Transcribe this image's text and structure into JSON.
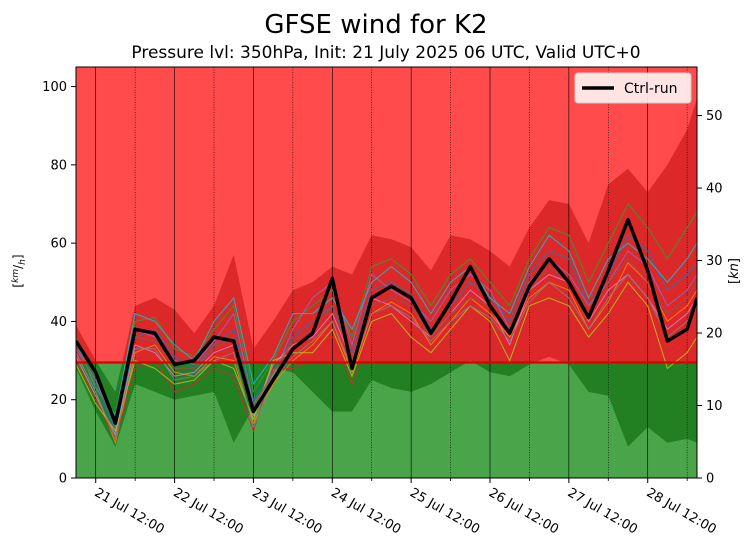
{
  "chart_data": {
    "type": "line",
    "title": "GFSE wind for K2",
    "subtitle": "Pressure lvl: 350hPa, Init: 21 July 2025 06 UTC, Valid UTC+0",
    "ylabel_left": "[km/h]",
    "ylabel_right": "[kn]",
    "ylim_left": [
      0,
      105
    ],
    "ylim_right": [
      0,
      56.7
    ],
    "yticks_left": [
      0,
      20,
      40,
      60,
      80,
      100
    ],
    "yticks_right": [
      0,
      10,
      20,
      30,
      40,
      50
    ],
    "xlim": [
      "2025-07-21 06:00",
      "2025-07-29 03:00"
    ],
    "xtick_labels": [
      "21 Jul 12:00",
      "22 Jul 12:00",
      "23 Jul 12:00",
      "24 Jul 12:00",
      "25 Jul 12:00",
      "26 Jul 12:00",
      "27 Jul 12:00",
      "28 Jul 12:00"
    ],
    "threshold_kmh": 29.5,
    "colors": {
      "above_threshold": "#ff4b4b",
      "below_threshold": "#4aa54a",
      "spread_above": "#dc2828",
      "spread_below": "#228022",
      "threshold_line": "#e00000",
      "ctrl": "#000000",
      "members": [
        "#1f77b4",
        "#ff7f0e",
        "#2ca02c",
        "#d62728",
        "#9467bd",
        "#e377c2",
        "#17becf",
        "#bcbd22",
        "#8c564b",
        "#7f7f7f"
      ]
    },
    "grid": "vertical lines at each x tick",
    "legend": {
      "position": "top-right",
      "entries": [
        "Ctrl-run"
      ]
    },
    "x": [
      "2025-07-21 06:00",
      "2025-07-21 12:00",
      "2025-07-21 18:00",
      "2025-07-22 00:00",
      "2025-07-22 06:00",
      "2025-07-22 12:00",
      "2025-07-22 18:00",
      "2025-07-23 00:00",
      "2025-07-23 06:00",
      "2025-07-23 12:00",
      "2025-07-23 18:00",
      "2025-07-24 00:00",
      "2025-07-24 06:00",
      "2025-07-24 12:00",
      "2025-07-24 18:00",
      "2025-07-25 00:00",
      "2025-07-25 06:00",
      "2025-07-25 12:00",
      "2025-07-25 18:00",
      "2025-07-26 00:00",
      "2025-07-26 06:00",
      "2025-07-26 12:00",
      "2025-07-26 18:00",
      "2025-07-27 00:00",
      "2025-07-27 06:00",
      "2025-07-27 12:00",
      "2025-07-27 18:00",
      "2025-07-28 00:00",
      "2025-07-28 06:00",
      "2025-07-28 12:00",
      "2025-07-28 18:00",
      "2025-07-29 00:00",
      "2025-07-29 03:00"
    ],
    "ensemble_max": [
      39,
      30,
      22,
      44,
      46,
      43,
      37,
      44,
      57,
      33,
      40,
      48,
      50,
      54,
      52,
      62,
      61,
      59,
      53,
      62,
      61,
      58,
      54,
      64,
      71,
      70,
      60,
      75,
      79,
      73,
      80,
      89,
      97
    ],
    "ensemble_min": [
      28,
      17,
      8,
      24,
      22,
      20,
      21,
      22,
      9,
      18,
      28,
      27,
      22,
      17,
      17,
      25,
      23,
      22,
      24,
      27,
      30,
      27,
      26,
      29,
      31,
      29,
      22,
      21,
      8,
      13,
      9,
      10,
      9
    ],
    "series": [
      {
        "name": "Ctrl-run",
        "values": [
          35,
          27,
          14,
          38,
          37,
          29,
          30,
          36,
          35,
          17,
          25,
          33,
          37,
          51,
          28,
          46,
          49,
          46,
          37,
          45,
          54,
          44,
          37,
          49,
          56,
          50,
          41,
          53,
          66,
          53,
          35,
          38,
          46
        ]
      },
      {
        "values": [
          34,
          24,
          12,
          36,
          38,
          31,
          28,
          34,
          38,
          20,
          27,
          36,
          40,
          44,
          32,
          48,
          50,
          47,
          38,
          44,
          50,
          46,
          40,
          52,
          58,
          56,
          44,
          52,
          62,
          58,
          48,
          52,
          55
        ]
      },
      {
        "values": [
          32,
          22,
          9,
          32,
          34,
          27,
          26,
          31,
          30,
          14,
          24,
          30,
          34,
          40,
          27,
          42,
          45,
          42,
          34,
          40,
          46,
          42,
          36,
          46,
          50,
          48,
          38,
          45,
          55,
          50,
          40,
          44,
          48
        ]
      },
      {
        "values": [
          36,
          26,
          15,
          40,
          41,
          33,
          31,
          38,
          44,
          22,
          30,
          40,
          44,
          48,
          36,
          54,
          56,
          52,
          44,
          52,
          56,
          50,
          44,
          56,
          64,
          62,
          50,
          60,
          70,
          64,
          56,
          64,
          68
        ]
      },
      {
        "values": [
          30,
          20,
          10,
          28,
          30,
          22,
          24,
          28,
          26,
          12,
          28,
          28,
          30,
          36,
          24,
          38,
          40,
          38,
          30,
          36,
          42,
          38,
          32,
          42,
          44,
          42,
          34,
          40,
          46,
          42,
          32,
          36,
          40
        ]
      },
      {
        "values": [
          33,
          25,
          13,
          38,
          36,
          30,
          29,
          35,
          42,
          19,
          26,
          38,
          46,
          50,
          34,
          52,
          48,
          45,
          40,
          48,
          52,
          48,
          38,
          50,
          56,
          52,
          44,
          50,
          58,
          54,
          44,
          48,
          52
        ]
      },
      {
        "values": [
          31,
          21,
          11,
          34,
          32,
          26,
          27,
          32,
          34,
          16,
          29,
          34,
          36,
          42,
          30,
          46,
          44,
          40,
          36,
          42,
          48,
          44,
          34,
          48,
          52,
          50,
          40,
          48,
          52,
          46,
          38,
          42,
          46
        ]
      },
      {
        "values": [
          35,
          23,
          16,
          42,
          40,
          34,
          30,
          40,
          46,
          24,
          31,
          42,
          42,
          46,
          38,
          50,
          54,
          50,
          42,
          50,
          54,
          46,
          42,
          54,
          62,
          58,
          46,
          56,
          60,
          56,
          50,
          56,
          60
        ]
      },
      {
        "values": [
          29,
          19,
          12,
          30,
          28,
          24,
          25,
          30,
          28,
          15,
          30,
          32,
          32,
          38,
          26,
          40,
          42,
          36,
          32,
          38,
          44,
          40,
          30,
          44,
          46,
          44,
          36,
          42,
          50,
          44,
          28,
          32,
          36
        ]
      },
      {
        "values": [
          34,
          24,
          14,
          36,
          35,
          28,
          28,
          33,
          36,
          18,
          27,
          35,
          38,
          44,
          30,
          44,
          46,
          44,
          36,
          42,
          46,
          44,
          38,
          48,
          54,
          50,
          42,
          50,
          56,
          50,
          42,
          46,
          50
        ]
      },
      {
        "values": [
          32,
          22,
          10,
          33,
          33,
          25,
          26,
          30,
          32,
          13,
          25,
          31,
          35,
          40,
          28,
          42,
          44,
          41,
          35,
          40,
          44,
          41,
          35,
          45,
          50,
          46,
          38,
          46,
          52,
          46,
          36,
          40,
          44
        ]
      }
    ]
  }
}
